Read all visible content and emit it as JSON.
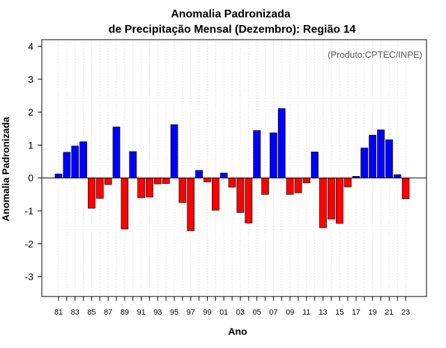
{
  "chart_data": {
    "type": "bar",
    "title_line1": "Anomalia Padronizada",
    "title_line2": "de Precipitação Mensal (Dezembro): Região 14",
    "xlabel": "Ano",
    "ylabel": "Anomalia Padronizada",
    "credit": "(Produto:CPTEC/INPE)",
    "ylim": [
      -3.6,
      4.2
    ],
    "yticks": [
      -3,
      -2,
      -1,
      0,
      1,
      2,
      3,
      4
    ],
    "categories": [
      "81",
      "82",
      "83",
      "84",
      "85",
      "86",
      "87",
      "88",
      "89",
      "90",
      "91",
      "92",
      "93",
      "94",
      "95",
      "96",
      "97",
      "98",
      "99",
      "00",
      "01",
      "02",
      "03",
      "04",
      "05",
      "06",
      "07",
      "08",
      "09",
      "10",
      "11",
      "12",
      "13",
      "14",
      "15",
      "16",
      "17",
      "18",
      "19",
      "20",
      "21",
      "22",
      "23"
    ],
    "xtick_labels": [
      "81",
      "83",
      "85",
      "87",
      "89",
      "91",
      "93",
      "95",
      "97",
      "99",
      "01",
      "03",
      "05",
      "07",
      "09",
      "11",
      "13",
      "15",
      "17",
      "19",
      "21",
      "23"
    ],
    "values": [
      0.12,
      0.78,
      0.97,
      1.1,
      -0.92,
      -0.62,
      -0.2,
      1.55,
      -1.55,
      0.8,
      -0.6,
      -0.58,
      -0.18,
      -0.17,
      1.62,
      -0.75,
      -1.6,
      0.23,
      -0.12,
      -0.98,
      0.15,
      -0.28,
      -1.05,
      -1.37,
      1.44,
      -0.5,
      1.37,
      2.11,
      -0.5,
      -0.45,
      -0.15,
      0.79,
      -1.51,
      -1.25,
      -1.38,
      -0.27,
      0.05,
      0.91,
      1.3,
      1.46,
      1.16,
      0.1,
      -0.63
    ],
    "colors": {
      "positive": "#0000ff",
      "negative": "#ff0000",
      "outline": "#000000",
      "grid": "#cccccc"
    }
  }
}
